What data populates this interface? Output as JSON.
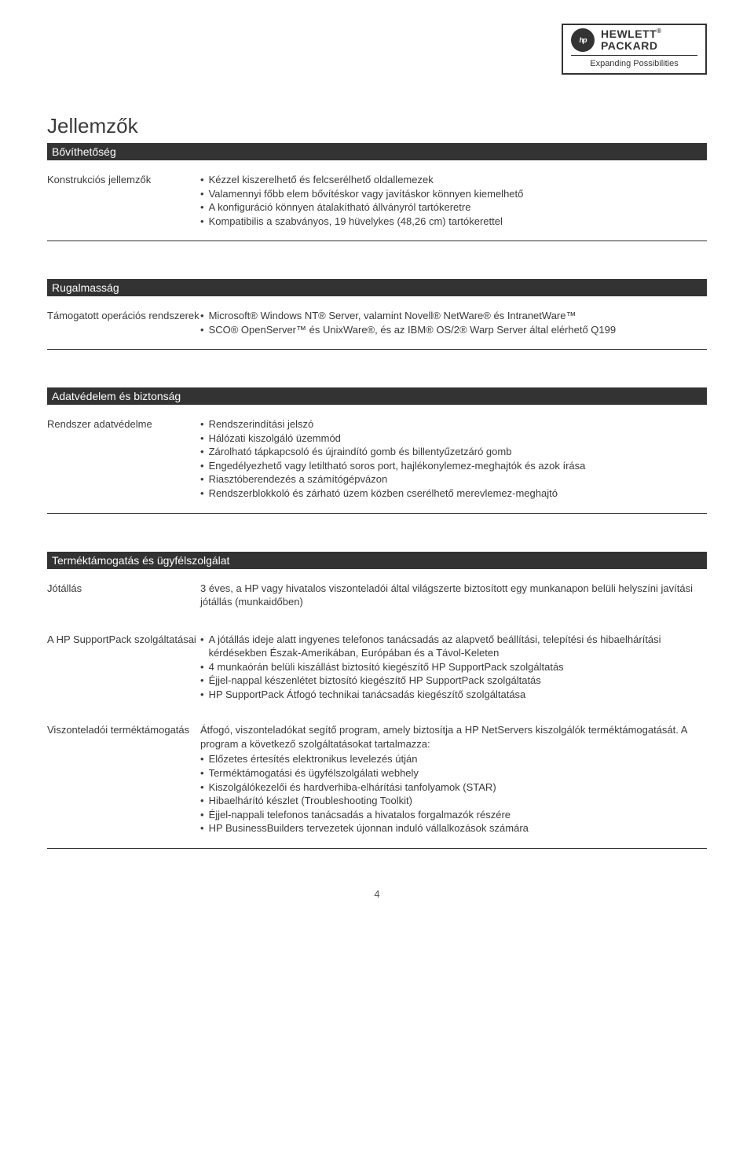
{
  "logo": {
    "brand_top": "HEWLETT",
    "brand_bottom": "PACKARD",
    "tagline": "Expanding Possibilities"
  },
  "title": "Jellemzők",
  "sections": [
    {
      "header": "Bővíthetőség",
      "rows": [
        {
          "label": "Konstrukciós jellemzők",
          "items": [
            "Kézzel kiszerelhető és felcserélhető oldallemezek",
            "Valamennyi főbb elem bővítéskor vagy javításkor könnyen kiemelhető",
            "A konfiguráció könnyen átalakítható állványról tartókeretre",
            "Kompatibilis a szabványos, 19 hüvelykes (48,26 cm) tartókerettel"
          ]
        }
      ]
    },
    {
      "header": "Rugalmasság",
      "rows": [
        {
          "label": "Támogatott operációs rendszerek",
          "items": [
            "Microsoft® Windows NT® Server, valamint Novell® NetWare® és IntranetWare™",
            "SCO® OpenServer™ és UnixWare®, és az IBM® OS/2® Warp Server által elérhető Q199"
          ]
        }
      ]
    },
    {
      "header": "Adatvédelem és biztonság",
      "rows": [
        {
          "label": "Rendszer adatvédelme",
          "items": [
            "Rendszerindítási jelszó",
            "Hálózati kiszolgáló üzemmód",
            "Zárolható tápkapcsoló és újraindító gomb és billentyűzetzáró gomb",
            "Engedélyezhető vagy letiltható soros port, hajlékonylemez-meghajtók és azok írása",
            "Riasztóberendezés a számítógépvázon",
            "Rendszerblokkoló és zárható üzem közben cserélhető merevlemez-meghajtó"
          ]
        }
      ]
    },
    {
      "header": "Terméktámogatás és ügyfélszolgálat",
      "rows": [
        {
          "label": "Jótállás",
          "plain": [
            "3 éves, a HP vagy hivatalos viszonteladói által világszerte biztosított egy munkanapon belüli helyszíni javítási jótállás (munkaidőben)"
          ]
        },
        {
          "label": "A HP SupportPack szolgáltatásai",
          "items": [
            "A jótállás ideje alatt ingyenes telefonos tanácsadás az alapvető beállítási, telepítési és hibaelhárítási kérdésekben Észak-Amerikában, Európában és a Távol-Keleten",
            "4 munkaórán belüli kiszállást biztosító kiegészítő HP SupportPack szolgáltatás",
            "Éjjel-nappal készenlétet biztosító kiegészítő HP SupportPack szolgáltatás",
            "HP SupportPack Átfogó technikai tanácsadás kiegészítő szolgáltatása"
          ]
        },
        {
          "label": "Viszonteladói terméktámogatás",
          "plain": [
            "Átfogó, viszonteladókat segítő program, amely biztosítja a HP NetServers kiszolgálók terméktámogatását. A program a következő szolgáltatásokat tartalmazza:"
          ],
          "items": [
            "Előzetes értesítés elektronikus levelezés útján",
            "Terméktámogatási és ügyfélszolgálati webhely",
            "Kiszolgálókezelői és hardverhiba-elhárítási tanfolyamok (STAR)",
            "Hibaelhárító készlet (Troubleshooting Toolkit)",
            "Éjjel-nappali telefonos tanácsadás a hivatalos forgalmazók részére",
            "HP BusinessBuilders tervezetek újonnan induló vállalkozások számára"
          ]
        }
      ]
    }
  ],
  "page_number": "4"
}
